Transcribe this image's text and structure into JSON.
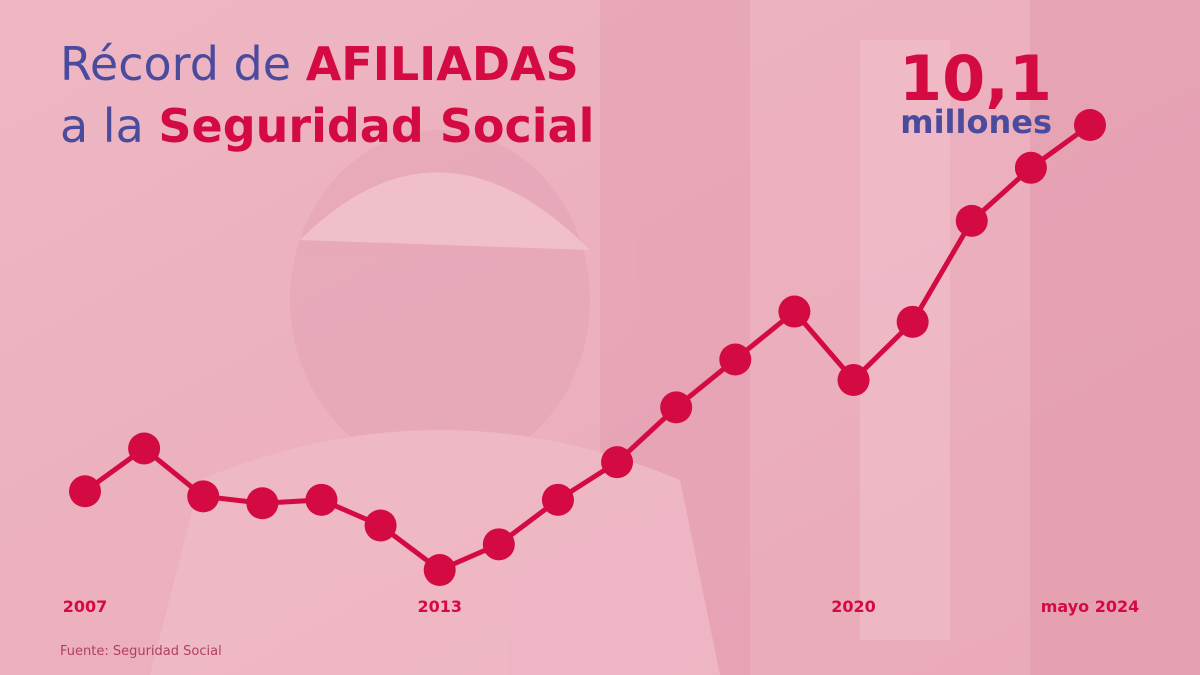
{
  "chart_data": {
    "type": "line",
    "title_parts": [
      [
        "Récord de ",
        "AFILIADAS"
      ],
      [
        "a la ",
        "Seguridad Social"
      ]
    ],
    "categories": [
      "2007",
      null,
      null,
      null,
      null,
      null,
      "2013",
      null,
      null,
      null,
      null,
      null,
      null,
      "2020",
      null,
      null,
      null,
      "mayo 2024"
    ],
    "values": [
      7.96,
      8.21,
      7.93,
      7.89,
      7.91,
      7.76,
      7.5,
      7.65,
      7.91,
      8.13,
      8.45,
      8.73,
      9.01,
      8.61,
      8.95,
      9.54,
      9.85,
      10.1
    ],
    "value_labels": [
      null,
      null,
      null,
      null,
      null,
      null,
      null,
      null,
      null,
      null,
      null,
      null,
      null,
      null,
      null,
      null,
      null,
      "10,1"
    ],
    "unit_label": "millones",
    "color": "#d40a42",
    "source": "Fuente: Seguridad Social"
  }
}
